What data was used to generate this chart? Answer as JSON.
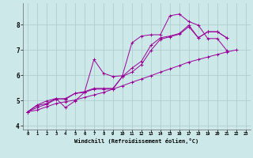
{
  "xlabel": "Windchill (Refroidissement éolien,°C)",
  "background_color": "#cce8e8",
  "grid_color": "#aacccc",
  "line_color": "#990099",
  "xlim": [
    -0.5,
    23.5
  ],
  "ylim": [
    3.85,
    8.85
  ],
  "xticks": [
    0,
    1,
    2,
    3,
    4,
    5,
    6,
    7,
    8,
    9,
    10,
    11,
    12,
    13,
    14,
    15,
    16,
    17,
    18,
    19,
    20,
    21,
    22,
    23
  ],
  "yticks": [
    4,
    5,
    6,
    7,
    8
  ],
  "series": [
    {
      "x": [
        0,
        1,
        2,
        3,
        4,
        5,
        6,
        7,
        8,
        9,
        10,
        11,
        12,
        13,
        14,
        15,
        16,
        17,
        18,
        19,
        20,
        21,
        22,
        23
      ],
      "y": [
        4.55,
        4.8,
        4.88,
        5.08,
        4.72,
        4.98,
        5.32,
        6.62,
        6.08,
        5.95,
        5.98,
        7.28,
        7.55,
        7.6,
        7.6,
        8.35,
        8.42,
        8.12,
        7.98,
        7.45,
        7.45,
        6.98,
        null,
        null
      ]
    },
    {
      "x": [
        0,
        1,
        2,
        3,
        4,
        5,
        6,
        7,
        8,
        9,
        10,
        11,
        12,
        13,
        14,
        15,
        16,
        17,
        18,
        19,
        20,
        21,
        22,
        23
      ],
      "y": [
        4.55,
        4.82,
        4.98,
        5.08,
        5.05,
        5.28,
        5.32,
        5.45,
        5.45,
        5.45,
        5.95,
        6.12,
        6.42,
        6.98,
        7.42,
        7.52,
        7.62,
        7.92,
        7.48,
        7.72,
        7.72,
        7.48,
        null,
        null
      ]
    },
    {
      "x": [
        0,
        1,
        2,
        3,
        4,
        5,
        6,
        7,
        8,
        9,
        10,
        11,
        12,
        13,
        14,
        15,
        16,
        17,
        18,
        19,
        20,
        21,
        22,
        23
      ],
      "y": [
        4.55,
        4.62,
        4.75,
        4.88,
        4.95,
        5.02,
        5.12,
        5.22,
        5.32,
        5.45,
        5.58,
        5.72,
        5.85,
        5.98,
        6.12,
        6.25,
        6.38,
        6.52,
        6.62,
        6.72,
        6.82,
        6.92,
        7.0,
        null
      ]
    },
    {
      "x": [
        0,
        1,
        2,
        3,
        4,
        5,
        6,
        7,
        8,
        9,
        10,
        11,
        12,
        13,
        14,
        15,
        16,
        17,
        18,
        19,
        20,
        21,
        22,
        23
      ],
      "y": [
        4.55,
        4.72,
        4.85,
        5.05,
        5.08,
        5.28,
        5.35,
        5.48,
        5.48,
        5.48,
        5.95,
        6.28,
        6.55,
        7.18,
        7.48,
        7.55,
        7.65,
        7.98,
        7.48,
        7.72,
        7.72,
        7.48,
        null,
        null
      ]
    }
  ]
}
